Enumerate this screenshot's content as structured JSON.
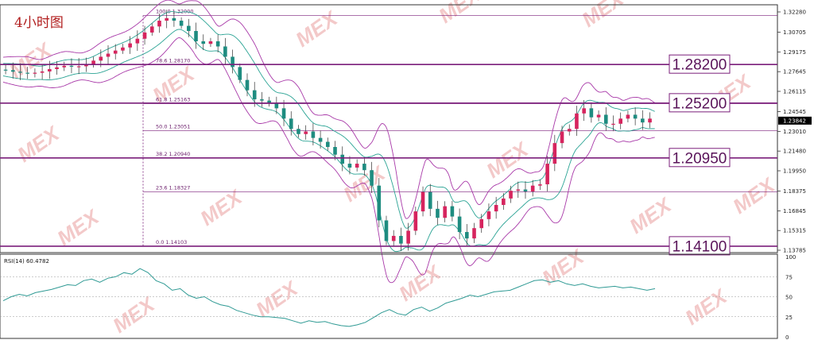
{
  "title": "4小时图",
  "watermark": "MEX",
  "colors": {
    "bull": "#d6245e",
    "bear": "#1e8c80",
    "band_outer": "#a838a8",
    "band_inner": "#2aa394",
    "level_line": "#7b1f7b",
    "rsi_line": "#2f9a94",
    "grid": "#dddddd",
    "price_badge": "#000000"
  },
  "chart_data": [
    {
      "type": "candlestick",
      "title": "4小时图",
      "y_ticks": [
        "1.32280",
        "1.30705",
        "1.29175",
        "1.27645",
        "1.26115",
        "1.24545",
        "1.23010",
        "1.21480",
        "1.19950",
        "1.18375",
        "1.16845",
        "1.15315",
        "1.13785"
      ],
      "ylim": [
        1.13785,
        1.3228
      ],
      "current_price": "1.23842",
      "fibonacci": [
        {
          "pct": "100.0",
          "price": "1.32000",
          "value": 1.32
        },
        {
          "pct": "78.6",
          "price": "1.28170",
          "value": 1.2817
        },
        {
          "pct": "61.8",
          "price": "1.25163",
          "value": 1.25163
        },
        {
          "pct": "50.0",
          "price": "1.23051",
          "value": 1.23051
        },
        {
          "pct": "38.2",
          "price": "1.20940",
          "value": 1.2094
        },
        {
          "pct": "23.6",
          "price": "1.18327",
          "value": 1.18327
        },
        {
          "pct": "0.0",
          "price": "1.14103",
          "value": 1.14103
        }
      ],
      "levels": [
        {
          "label": "1.28200",
          "value": 1.282
        },
        {
          "label": "1.25200",
          "value": 1.252
        },
        {
          "label": "1.20950",
          "value": 1.2095
        },
        {
          "label": "1.14100",
          "value": 1.141
        }
      ],
      "close_path": [
        [
          0,
          1.278
        ],
        [
          10,
          1.276
        ],
        [
          20,
          1.275
        ],
        [
          30,
          1.276
        ],
        [
          40,
          1.279
        ],
        [
          50,
          1.281
        ],
        [
          60,
          1.28
        ],
        [
          70,
          1.283
        ],
        [
          80,
          1.288
        ],
        [
          90,
          1.292
        ],
        [
          100,
          1.296
        ],
        [
          110,
          1.302
        ],
        [
          120,
          1.31
        ],
        [
          128,
          1.316
        ],
        [
          134,
          1.318
        ],
        [
          140,
          1.316
        ],
        [
          146,
          1.312
        ],
        [
          152,
          1.308
        ],
        [
          158,
          1.3
        ],
        [
          164,
          1.298
        ],
        [
          170,
          1.3
        ],
        [
          176,
          1.296
        ],
        [
          182,
          1.288
        ],
        [
          188,
          1.28
        ],
        [
          194,
          1.27
        ],
        [
          200,
          1.262
        ],
        [
          206,
          1.255
        ],
        [
          212,
          1.254
        ],
        [
          218,
          1.252
        ],
        [
          224,
          1.248
        ],
        [
          230,
          1.24
        ],
        [
          236,
          1.232
        ],
        [
          242,
          1.228
        ],
        [
          248,
          1.23
        ],
        [
          254,
          1.225
        ],
        [
          260,
          1.222
        ],
        [
          266,
          1.218
        ],
        [
          272,
          1.212
        ],
        [
          278,
          1.205
        ],
        [
          284,
          1.202
        ],
        [
          290,
          1.205
        ],
        [
          296,
          1.2
        ],
        [
          302,
          1.188
        ],
        [
          306,
          1.17
        ],
        [
          310,
          1.152
        ],
        [
          314,
          1.145
        ],
        [
          318,
          1.15
        ],
        [
          322,
          1.148
        ],
        [
          326,
          1.143
        ],
        [
          330,
          1.15
        ],
        [
          334,
          1.156
        ],
        [
          338,
          1.168
        ],
        [
          342,
          1.18
        ],
        [
          346,
          1.186
        ],
        [
          350,
          1.17
        ],
        [
          354,
          1.16
        ],
        [
          358,
          1.166
        ],
        [
          362,
          1.172
        ],
        [
          366,
          1.168
        ],
        [
          370,
          1.16
        ],
        [
          374,
          1.152
        ],
        [
          378,
          1.146
        ],
        [
          382,
          1.148
        ],
        [
          386,
          1.155
        ],
        [
          390,
          1.16
        ],
        [
          394,
          1.164
        ],
        [
          398,
          1.168
        ],
        [
          402,
          1.172
        ],
        [
          406,
          1.174
        ],
        [
          410,
          1.178
        ],
        [
          414,
          1.182
        ],
        [
          418,
          1.186
        ],
        [
          422,
          1.185
        ],
        [
          426,
          1.182
        ],
        [
          430,
          1.185
        ],
        [
          434,
          1.188
        ],
        [
          438,
          1.186
        ],
        [
          442,
          1.192
        ],
        [
          446,
          1.205
        ],
        [
          450,
          1.218
        ],
        [
          454,
          1.224
        ],
        [
          458,
          1.23
        ],
        [
          462,
          1.228
        ],
        [
          466,
          1.236
        ],
        [
          470,
          1.244
        ],
        [
          474,
          1.25
        ],
        [
          478,
          1.246
        ],
        [
          482,
          1.241
        ],
        [
          486,
          1.244
        ],
        [
          490,
          1.242
        ],
        [
          494,
          1.236
        ],
        [
          498,
          1.238
        ],
        [
          502,
          1.234
        ],
        [
          506,
          1.24
        ],
        [
          510,
          1.244
        ],
        [
          514,
          1.242
        ],
        [
          518,
          1.24
        ],
        [
          522,
          1.238
        ],
        [
          526,
          1.236
        ],
        [
          530,
          1.24
        ],
        [
          534,
          1.238
        ]
      ]
    },
    {
      "type": "line",
      "title": "RSI(14) 60.4782",
      "name": "RSI(14)",
      "current_value": "60.4782",
      "y_ticks": [
        "100",
        "75",
        "50",
        "25",
        "0"
      ],
      "ylim": [
        0,
        100
      ],
      "levels": [
        75,
        50,
        25
      ],
      "values": [
        45,
        50,
        53,
        51,
        55,
        57,
        59,
        62,
        65,
        64,
        70,
        72,
        68,
        73,
        75,
        80,
        78,
        85,
        80,
        70,
        66,
        58,
        60,
        52,
        48,
        50,
        44,
        40,
        38,
        33,
        30,
        27,
        25,
        25,
        24,
        23,
        20,
        17,
        20,
        18,
        19,
        16,
        14,
        13,
        15,
        18,
        24,
        30,
        34,
        29,
        27,
        34,
        37,
        32,
        36,
        42,
        45,
        48,
        52,
        50,
        53,
        56,
        57,
        58,
        62,
        66,
        70,
        71,
        68,
        70,
        66,
        64,
        66,
        63,
        61,
        62,
        63,
        61,
        62,
        60,
        58,
        60
      ]
    }
  ]
}
